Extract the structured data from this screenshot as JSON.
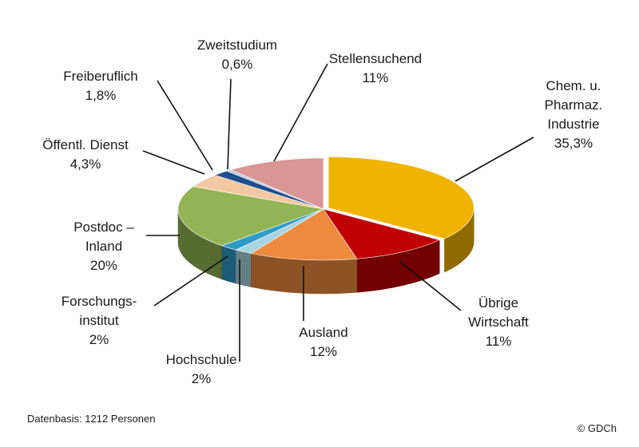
{
  "chart_data": {
    "type": "pie",
    "style": "3d-exploded",
    "legend": "none",
    "slices": [
      {
        "label": [
          "Chem. u.",
          "Pharmaz.",
          "Industrie"
        ],
        "value_label": "35,3%",
        "value": 35.3,
        "color": "#f0b400"
      },
      {
        "label": [
          "Übrige",
          "Wirtschaft"
        ],
        "value_label": "11%",
        "value": 11,
        "color": "#c00000"
      },
      {
        "label": [
          "Ausland"
        ],
        "value_label": "12%",
        "value": 12,
        "color": "#ed8a3d"
      },
      {
        "label": [
          "Hochschule"
        ],
        "value_label": "2%",
        "value": 2,
        "color": "#a9d3e0"
      },
      {
        "label": [
          "Forschungs-",
          "institut"
        ],
        "value_label": "2%",
        "value": 2,
        "color": "#2e9ac7"
      },
      {
        "label": [
          "Postdoc –",
          "Inland"
        ],
        "value_label": "20%",
        "value": 20,
        "color": "#93b454"
      },
      {
        "label": [
          "Öffentl. Dienst"
        ],
        "value_label": "4,3%",
        "value": 4.3,
        "color": "#f2c8a2"
      },
      {
        "label": [
          "Freiberuflich"
        ],
        "value_label": "1,8%",
        "value": 1.8,
        "color": "#1f4e8c"
      },
      {
        "label": [
          "Zweitstudium"
        ],
        "value_label": "0,6%",
        "value": 0.6,
        "color": "#b9cde5"
      },
      {
        "label": [
          "Stellensuchend"
        ],
        "value_label": "11%",
        "value": 11,
        "color": "#d99694"
      }
    ]
  },
  "footer": {
    "source": "Datenbasis: 1212 Personen",
    "copyright": "© GDCh"
  }
}
